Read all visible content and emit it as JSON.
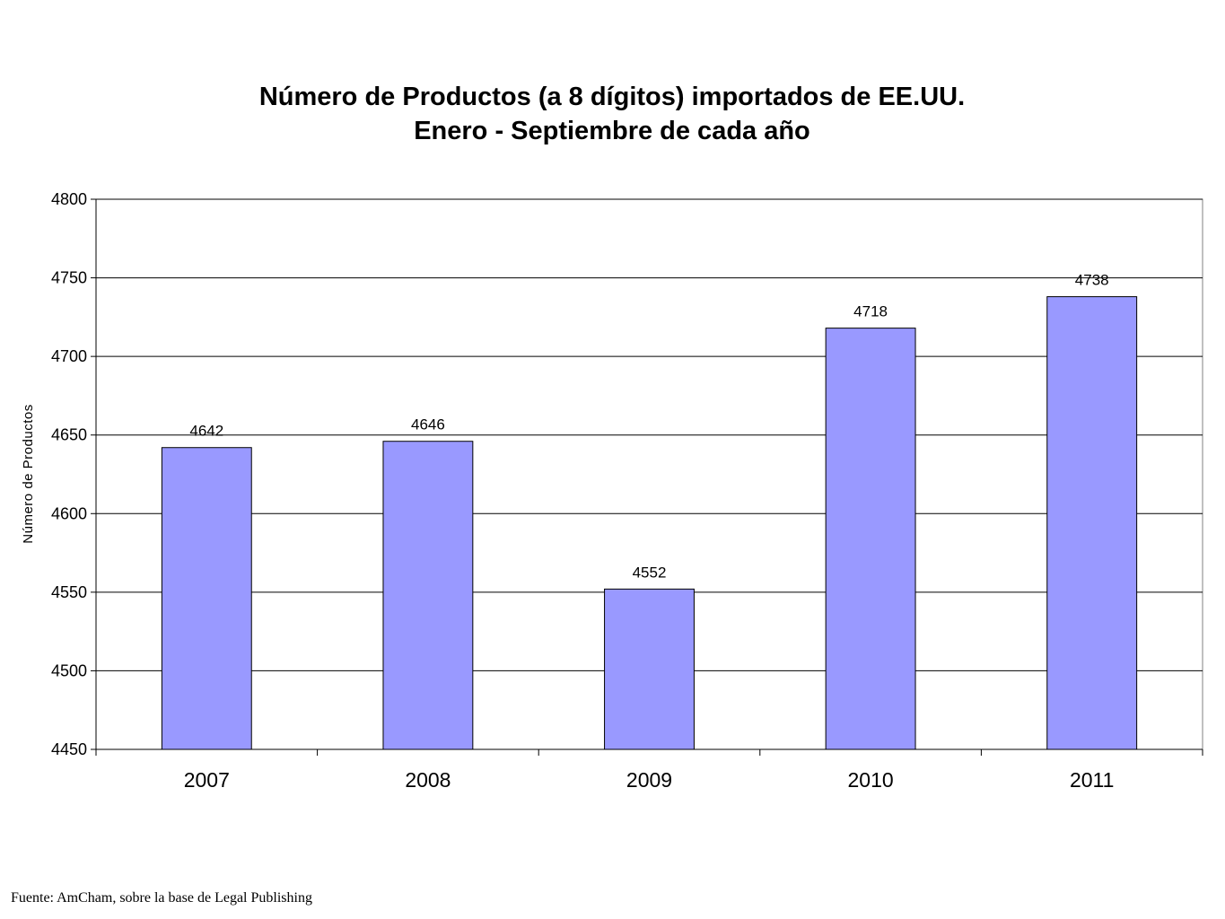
{
  "chart_data": {
    "type": "bar",
    "title": [
      "Número de Productos (a 8 dígitos) importados de EE.UU.",
      "Enero - Septiembre de cada año"
    ],
    "ylabel": "Número de Productos",
    "xlabel": "",
    "categories": [
      "2007",
      "2008",
      "2009",
      "2010",
      "2011"
    ],
    "values": [
      4642,
      4646,
      4552,
      4718,
      4738
    ],
    "data_labels": [
      "4642",
      "4646",
      "4552",
      "4718",
      "4738"
    ],
    "ylim": [
      4450,
      4800
    ],
    "yticks": [
      4450,
      4500,
      4550,
      4600,
      4650,
      4700,
      4750,
      4800
    ],
    "grid": true,
    "bar_color": "#9999ff",
    "legend": "none"
  },
  "source": "Fuente: AmCham, sobre la base de Legal Publishing"
}
